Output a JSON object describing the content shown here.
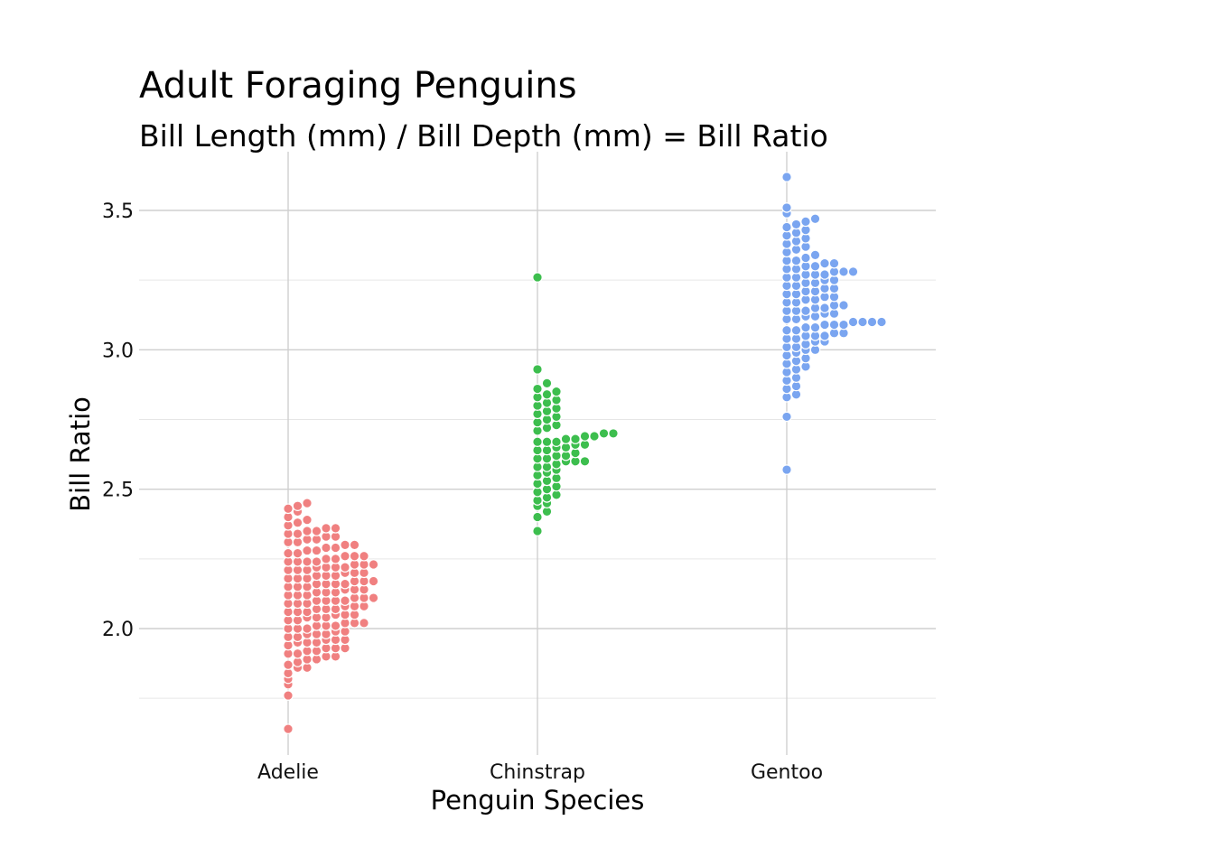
{
  "chart_data": {
    "type": "scatter",
    "subtype": "beeswarm",
    "title": "Adult Foraging Penguins",
    "subtitle": "Bill Length (mm) / Bill Depth (mm) = Bill Ratio",
    "xlabel": "Penguin Species",
    "ylabel": "Bill Ratio",
    "categories": [
      "Adelie",
      "Chinstrap",
      "Gentoo"
    ],
    "ylim": [
      1.6,
      3.7
    ],
    "yticks": [
      2.0,
      2.5,
      3.0,
      3.5
    ],
    "ytick_labels": [
      "2.0",
      "2.5",
      "3.0",
      "3.5"
    ],
    "grid": true,
    "legend": "none",
    "series": [
      {
        "category": "Adelie",
        "color": "#F08080",
        "values": [
          1.64,
          1.76,
          1.8,
          1.82,
          1.84,
          1.86,
          1.86,
          1.87,
          1.88,
          1.89,
          1.89,
          1.9,
          1.9,
          1.91,
          1.91,
          1.92,
          1.92,
          1.93,
          1.93,
          1.93,
          1.94,
          1.95,
          1.95,
          1.95,
          1.96,
          1.96,
          1.96,
          1.97,
          1.97,
          1.98,
          1.98,
          1.98,
          1.99,
          1.99,
          2.0,
          2.0,
          2.0,
          2.01,
          2.01,
          2.01,
          2.02,
          2.02,
          2.02,
          2.03,
          2.03,
          2.04,
          2.04,
          2.04,
          2.05,
          2.05,
          2.05,
          2.06,
          2.06,
          2.06,
          2.07,
          2.07,
          2.07,
          2.08,
          2.08,
          2.08,
          2.09,
          2.09,
          2.09,
          2.1,
          2.1,
          2.1,
          2.1,
          2.11,
          2.11,
          2.11,
          2.12,
          2.12,
          2.12,
          2.13,
          2.13,
          2.13,
          2.14,
          2.14,
          2.14,
          2.15,
          2.15,
          2.15,
          2.16,
          2.16,
          2.16,
          2.16,
          2.17,
          2.17,
          2.17,
          2.18,
          2.18,
          2.18,
          2.19,
          2.19,
          2.19,
          2.2,
          2.2,
          2.2,
          2.21,
          2.21,
          2.21,
          2.22,
          2.22,
          2.22,
          2.22,
          2.23,
          2.23,
          2.23,
          2.24,
          2.24,
          2.24,
          2.24,
          2.25,
          2.25,
          2.26,
          2.26,
          2.26,
          2.27,
          2.27,
          2.28,
          2.28,
          2.29,
          2.29,
          2.3,
          2.3,
          2.31,
          2.31,
          2.32,
          2.32,
          2.33,
          2.33,
          2.34,
          2.34,
          2.35,
          2.35,
          2.36,
          2.36,
          2.37,
          2.38,
          2.39,
          2.4,
          2.42,
          2.43,
          2.44,
          2.45
        ]
      },
      {
        "category": "Chinstrap",
        "color": "#3DBE4E",
        "values": [
          2.35,
          2.4,
          2.42,
          2.44,
          2.45,
          2.46,
          2.47,
          2.48,
          2.49,
          2.5,
          2.51,
          2.52,
          2.53,
          2.54,
          2.55,
          2.56,
          2.57,
          2.58,
          2.58,
          2.59,
          2.6,
          2.6,
          2.6,
          2.61,
          2.61,
          2.62,
          2.62,
          2.63,
          2.64,
          2.64,
          2.65,
          2.65,
          2.66,
          2.66,
          2.67,
          2.67,
          2.67,
          2.68,
          2.68,
          2.69,
          2.69,
          2.7,
          2.7,
          2.71,
          2.72,
          2.73,
          2.74,
          2.75,
          2.76,
          2.77,
          2.78,
          2.79,
          2.8,
          2.81,
          2.82,
          2.83,
          2.84,
          2.85,
          2.86,
          2.88,
          2.93,
          3.26
        ]
      },
      {
        "category": "Gentoo",
        "color": "#7AA5F0",
        "values": [
          2.57,
          2.76,
          2.83,
          2.84,
          2.86,
          2.87,
          2.89,
          2.9,
          2.92,
          2.93,
          2.94,
          2.95,
          2.96,
          2.97,
          2.98,
          2.99,
          3.0,
          3.0,
          3.01,
          3.01,
          3.02,
          3.03,
          3.03,
          3.04,
          3.04,
          3.05,
          3.05,
          3.05,
          3.06,
          3.06,
          3.07,
          3.07,
          3.08,
          3.08,
          3.09,
          3.09,
          3.09,
          3.1,
          3.1,
          3.1,
          3.1,
          3.11,
          3.11,
          3.12,
          3.12,
          3.13,
          3.13,
          3.14,
          3.14,
          3.14,
          3.15,
          3.15,
          3.16,
          3.16,
          3.17,
          3.17,
          3.18,
          3.18,
          3.19,
          3.19,
          3.2,
          3.2,
          3.21,
          3.21,
          3.22,
          3.22,
          3.23,
          3.23,
          3.24,
          3.24,
          3.25,
          3.25,
          3.26,
          3.26,
          3.27,
          3.27,
          3.27,
          3.28,
          3.28,
          3.28,
          3.29,
          3.29,
          3.3,
          3.3,
          3.31,
          3.31,
          3.32,
          3.32,
          3.33,
          3.34,
          3.35,
          3.36,
          3.37,
          3.38,
          3.39,
          3.4,
          3.41,
          3.42,
          3.43,
          3.44,
          3.45,
          3.46,
          3.47,
          3.49,
          3.51,
          3.62
        ]
      }
    ]
  }
}
